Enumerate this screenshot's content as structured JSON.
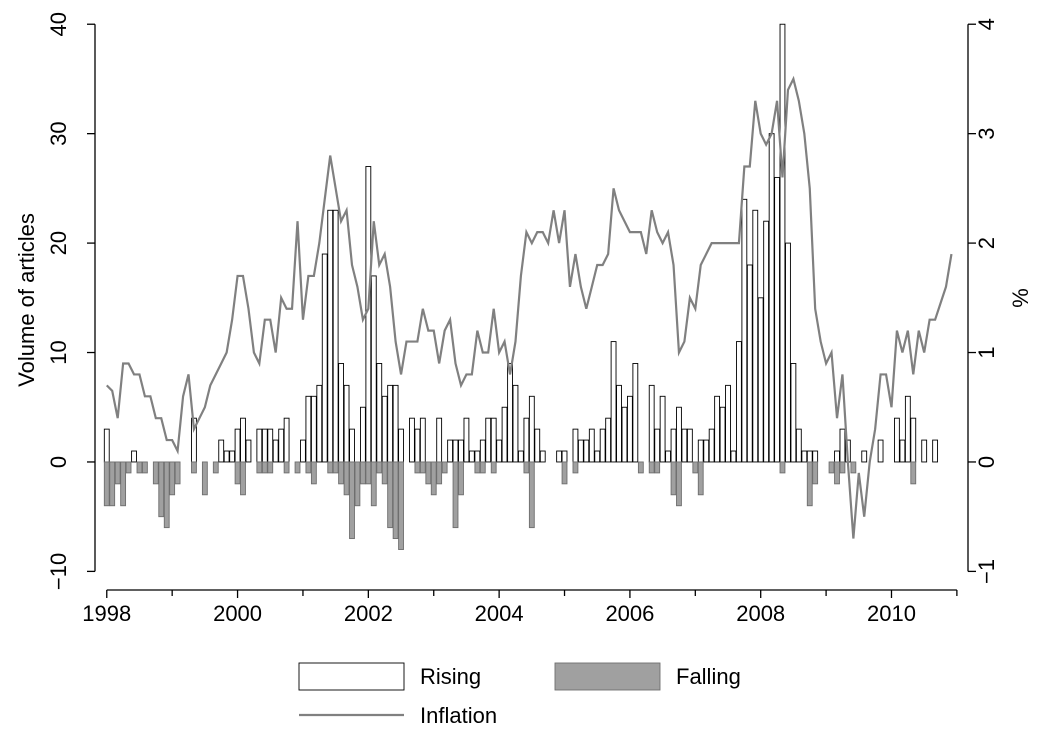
{
  "chart_data": {
    "type": "bar",
    "y_label": "Volume of articles",
    "y2_label": "%",
    "x": [
      1998,
      1998.083,
      1998.167,
      1998.25,
      1998.333,
      1998.417,
      1998.5,
      1998.583,
      1998.667,
      1998.75,
      1998.833,
      1998.917,
      1999,
      1999.083,
      1999.167,
      1999.25,
      1999.333,
      1999.417,
      1999.5,
      1999.583,
      1999.667,
      1999.75,
      1999.833,
      1999.917,
      2000,
      2000.083,
      2000.167,
      2000.25,
      2000.333,
      2000.417,
      2000.5,
      2000.583,
      2000.667,
      2000.75,
      2000.833,
      2000.917,
      2001,
      2001.083,
      2001.167,
      2001.25,
      2001.333,
      2001.417,
      2001.5,
      2001.583,
      2001.667,
      2001.75,
      2001.833,
      2001.917,
      2002,
      2002.083,
      2002.167,
      2002.25,
      2002.333,
      2002.417,
      2002.5,
      2002.583,
      2002.667,
      2002.75,
      2002.833,
      2002.917,
      2003,
      2003.083,
      2003.167,
      2003.25,
      2003.333,
      2003.417,
      2003.5,
      2003.583,
      2003.667,
      2003.75,
      2003.833,
      2003.917,
      2004,
      2004.083,
      2004.167,
      2004.25,
      2004.333,
      2004.417,
      2004.5,
      2004.583,
      2004.667,
      2004.75,
      2004.833,
      2004.917,
      2005,
      2005.083,
      2005.167,
      2005.25,
      2005.333,
      2005.417,
      2005.5,
      2005.583,
      2005.667,
      2005.75,
      2005.833,
      2005.917,
      2006,
      2006.083,
      2006.167,
      2006.25,
      2006.333,
      2006.417,
      2006.5,
      2006.583,
      2006.667,
      2006.75,
      2006.833,
      2006.917,
      2007,
      2007.083,
      2007.167,
      2007.25,
      2007.333,
      2007.417,
      2007.5,
      2007.583,
      2007.667,
      2007.75,
      2007.833,
      2007.917,
      2008,
      2008.083,
      2008.167,
      2008.25,
      2008.333,
      2008.417,
      2008.5,
      2008.583,
      2008.667,
      2008.75,
      2008.833,
      2008.917,
      2009,
      2009.083,
      2009.167,
      2009.25,
      2009.333,
      2009.417,
      2009.5,
      2009.583,
      2009.667,
      2009.75,
      2009.833,
      2009.917,
      2010,
      2010.083,
      2010.167,
      2010.25,
      2010.333,
      2010.417,
      2010.5,
      2010.583,
      2010.667,
      2010.75,
      2010.833,
      2010.917
    ],
    "series": [
      {
        "name": "Rising",
        "color": "#ffffff",
        "stroke": "#000000",
        "values": [
          3,
          0,
          0,
          0,
          0,
          1,
          0,
          0,
          0,
          0,
          0,
          0,
          0,
          0,
          0,
          0,
          4,
          0,
          0,
          0,
          0,
          2,
          1,
          1,
          3,
          4,
          2,
          0,
          3,
          3,
          3,
          2,
          3,
          4,
          0,
          0,
          2,
          6,
          6,
          7,
          19,
          23,
          23,
          9,
          7,
          3,
          0,
          5,
          27,
          17,
          9,
          6,
          7,
          7,
          3,
          0,
          4,
          3,
          4,
          0,
          0,
          4,
          0,
          2,
          2,
          2,
          4,
          1,
          1,
          2,
          4,
          4,
          2,
          5,
          9,
          7,
          1,
          4,
          6,
          3,
          1,
          0,
          0,
          1,
          1,
          0,
          3,
          2,
          2,
          3,
          1,
          3,
          4,
          11,
          7,
          5,
          6,
          9,
          0,
          0,
          7,
          3,
          6,
          1,
          3,
          5,
          3,
          3,
          0,
          2,
          2,
          3,
          6,
          5,
          7,
          1,
          11,
          24,
          18,
          23,
          15,
          22,
          30,
          26,
          40,
          20,
          9,
          3,
          1,
          1,
          1,
          0,
          0,
          0,
          1,
          3,
          2,
          0,
          0,
          1,
          0,
          0,
          2,
          0,
          0,
          4,
          2,
          6,
          4,
          0,
          2,
          0,
          2,
          0,
          0,
          0
        ]
      },
      {
        "name": "Falling",
        "color": "#a0a0a0",
        "stroke": "#6e6e6e",
        "values": [
          -4,
          -4,
          -2,
          -4,
          -1,
          0,
          -1,
          -1,
          0,
          -2,
          -5,
          -6,
          -3,
          -2,
          0,
          0,
          -1,
          0,
          -3,
          0,
          -1,
          0,
          0,
          0,
          -2,
          -3,
          0,
          0,
          -1,
          -1,
          -1,
          0,
          0,
          -1,
          0,
          -1,
          0,
          -1,
          -2,
          0,
          0,
          -1,
          -1,
          -2,
          -3,
          -7,
          -4,
          -2,
          -2,
          -4,
          -1,
          -2,
          -6,
          -7,
          -8,
          0,
          0,
          -1,
          -1,
          -2,
          -3,
          -2,
          -1,
          0,
          -6,
          -3,
          0,
          0,
          -1,
          -1,
          0,
          -1,
          0,
          0,
          0,
          0,
          0,
          -1,
          -6,
          0,
          0,
          0,
          0,
          0,
          -2,
          0,
          -1,
          0,
          0,
          0,
          0,
          0,
          0,
          0,
          0,
          0,
          0,
          0,
          -1,
          0,
          -1,
          -1,
          0,
          0,
          -3,
          -4,
          0,
          0,
          -1,
          -3,
          0,
          0,
          0,
          0,
          0,
          0,
          0,
          0,
          0,
          0,
          0,
          0,
          0,
          0,
          -1,
          0,
          0,
          0,
          0,
          -4,
          -2,
          0,
          0,
          -1,
          -2,
          -1,
          0,
          -1,
          0,
          0,
          0,
          0,
          0,
          0,
          0,
          0,
          0,
          0,
          -2,
          0,
          0,
          0,
          0,
          0,
          0,
          0
        ]
      },
      {
        "name": "Inflation",
        "type": "line",
        "axis": "y2",
        "color": "#808080",
        "values": [
          0.7,
          0.65,
          0.4,
          0.9,
          0.9,
          0.8,
          0.8,
          0.6,
          0.6,
          0.4,
          0.4,
          0.2,
          0.2,
          0.1,
          0.6,
          0.8,
          0.3,
          0.4,
          0.5,
          0.7,
          0.8,
          0.9,
          1.0,
          1.3,
          1.7,
          1.7,
          1.4,
          1.0,
          0.9,
          1.3,
          1.3,
          1.0,
          1.5,
          1.4,
          1.4,
          2.2,
          1.3,
          1.7,
          1.7,
          2.0,
          2.4,
          2.8,
          2.5,
          2.2,
          2.3,
          1.8,
          1.6,
          1.3,
          1.4,
          2.2,
          1.8,
          1.9,
          1.6,
          1.1,
          0.8,
          1.1,
          1.1,
          1.1,
          1.4,
          1.2,
          1.2,
          0.9,
          1.2,
          1.3,
          0.9,
          0.7,
          0.8,
          0.8,
          1.2,
          1.0,
          1.0,
          1.4,
          1.0,
          1.1,
          0.8,
          1.1,
          1.7,
          2.1,
          2.0,
          2.1,
          2.1,
          2.0,
          2.3,
          2.0,
          2.3,
          1.6,
          1.9,
          1.6,
          1.4,
          1.6,
          1.8,
          1.8,
          1.9,
          2.5,
          2.3,
          2.2,
          2.1,
          2.1,
          2.1,
          1.9,
          2.3,
          2.1,
          2.0,
          2.1,
          1.8,
          1.0,
          1.1,
          1.5,
          1.4,
          1.8,
          1.9,
          2.0,
          2.0,
          2.0,
          2.0,
          2.0,
          2.0,
          2.7,
          2.7,
          3.3,
          3.0,
          2.9,
          3.0,
          3.3,
          2.6,
          3.4,
          3.5,
          3.3,
          3.0,
          2.5,
          1.4,
          1.1,
          0.9,
          1.0,
          0.4,
          0.8,
          0.0,
          -0.7,
          -0.1,
          -0.5,
          0.0,
          0.3,
          0.8,
          0.8,
          0.5,
          1.2,
          1.0,
          1.2,
          0.8,
          1.2,
          1.0,
          1.3,
          1.3,
          1.45,
          1.6,
          1.9
        ]
      }
    ],
    "xlim": [
      1997.82,
      2011.17
    ],
    "xticks": [
      1998,
      2000,
      2002,
      2004,
      2006,
      2008,
      2010
    ],
    "xminor_ticks": [
      1999,
      2001,
      2003,
      2005,
      2007,
      2009,
      2011
    ],
    "ylim": [
      -11.7,
      41.3
    ],
    "yticks": [
      {
        "value": -10,
        "label": "−10"
      },
      0,
      10,
      20,
      30,
      40
    ],
    "y2lim": [
      -1.17,
      4.13
    ],
    "y2ticks": [
      {
        "value": -1,
        "label": "−1"
      },
      0,
      1,
      2,
      3,
      4
    ],
    "grid": false,
    "legend": "bottom"
  }
}
